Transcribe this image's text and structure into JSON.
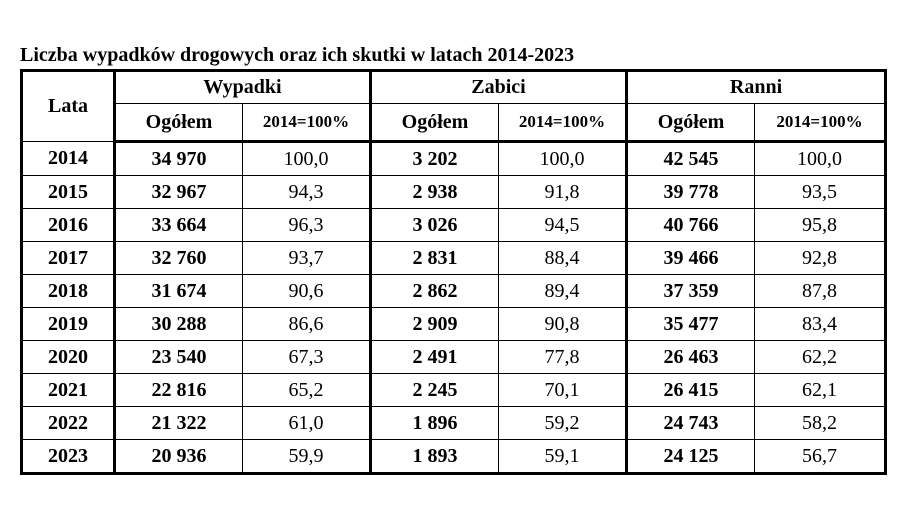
{
  "title": "Liczba wypadków drogowych oraz ich skutki w latach 2014-2023",
  "headers": {
    "year": "Lata",
    "groups": [
      "Wypadki",
      "Zabici",
      "Ranni"
    ],
    "sub_total": "Ogółem",
    "sub_index": "2014=100%"
  },
  "rows": [
    {
      "year": "2014",
      "wypadki_total": "34 970",
      "wypadki_idx": "100,0",
      "zabici_total": "3 202",
      "zabici_idx": "100,0",
      "ranni_total": "42 545",
      "ranni_idx": "100,0"
    },
    {
      "year": "2015",
      "wypadki_total": "32 967",
      "wypadki_idx": "94,3",
      "zabici_total": "2 938",
      "zabici_idx": "91,8",
      "ranni_total": "39 778",
      "ranni_idx": "93,5"
    },
    {
      "year": "2016",
      "wypadki_total": "33 664",
      "wypadki_idx": "96,3",
      "zabici_total": "3 026",
      "zabici_idx": "94,5",
      "ranni_total": "40 766",
      "ranni_idx": "95,8"
    },
    {
      "year": "2017",
      "wypadki_total": "32 760",
      "wypadki_idx": "93,7",
      "zabici_total": "2 831",
      "zabici_idx": "88,4",
      "ranni_total": "39 466",
      "ranni_idx": "92,8"
    },
    {
      "year": "2018",
      "wypadki_total": "31 674",
      "wypadki_idx": "90,6",
      "zabici_total": "2 862",
      "zabici_idx": "89,4",
      "ranni_total": "37 359",
      "ranni_idx": "87,8"
    },
    {
      "year": "2019",
      "wypadki_total": "30 288",
      "wypadki_idx": "86,6",
      "zabici_total": "2 909",
      "zabici_idx": "90,8",
      "ranni_total": "35 477",
      "ranni_idx": "83,4"
    },
    {
      "year": "2020",
      "wypadki_total": "23 540",
      "wypadki_idx": "67,3",
      "zabici_total": "2 491",
      "zabici_idx": "77,8",
      "ranni_total": "26 463",
      "ranni_idx": "62,2"
    },
    {
      "year": "2021",
      "wypadki_total": "22 816",
      "wypadki_idx": "65,2",
      "zabici_total": "2 245",
      "zabici_idx": "70,1",
      "ranni_total": "26 415",
      "ranni_idx": "62,1"
    },
    {
      "year": "2022",
      "wypadki_total": "21 322",
      "wypadki_idx": "61,0",
      "zabici_total": "1 896",
      "zabici_idx": "59,2",
      "ranni_total": "24 743",
      "ranni_idx": "58,2"
    },
    {
      "year": "2023",
      "wypadki_total": "20 936",
      "wypadki_idx": "59,9",
      "zabici_total": "1 893",
      "zabici_idx": "59,1",
      "ranni_total": "24 125",
      "ranni_idx": "56,7"
    }
  ]
}
